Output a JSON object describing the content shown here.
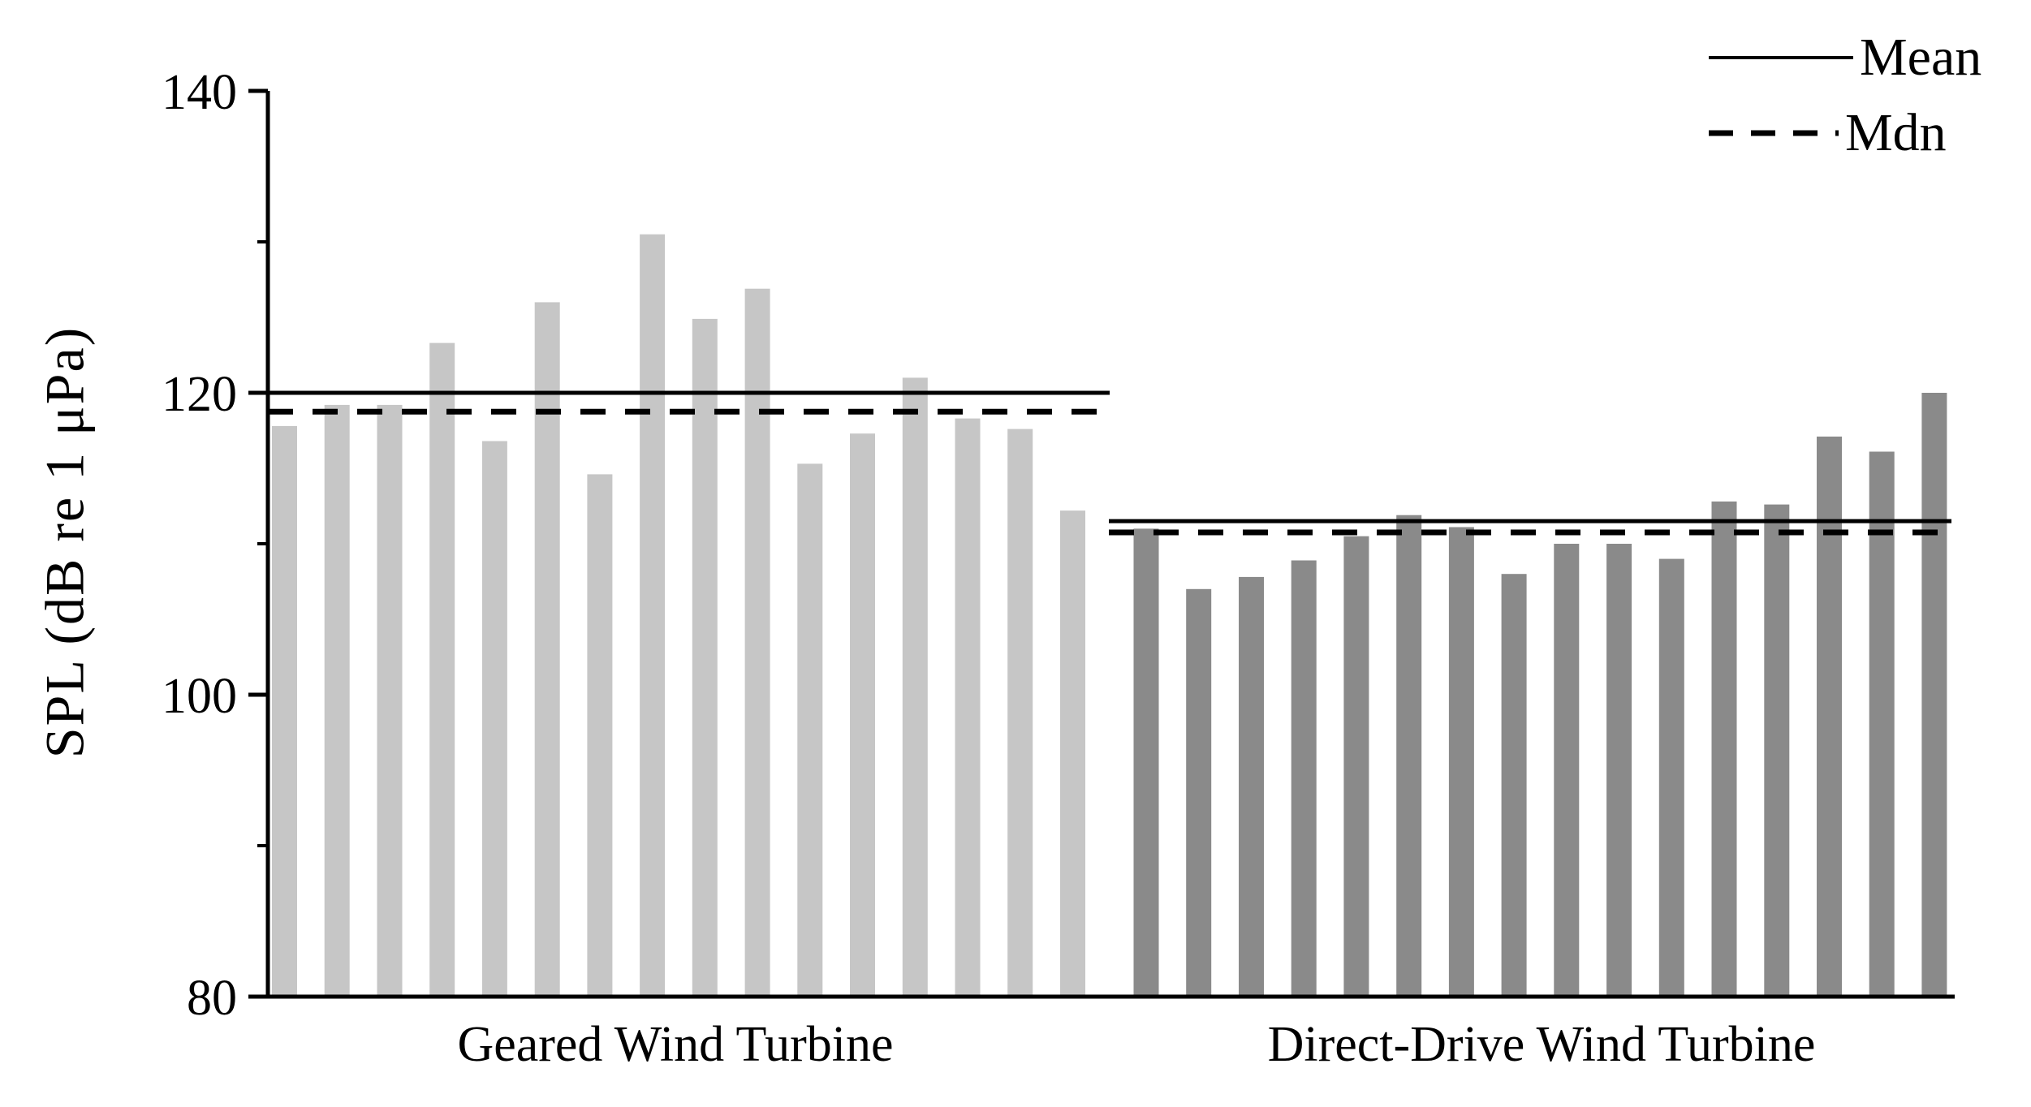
{
  "chart_data": {
    "type": "bar",
    "title": "",
    "ylabel": "SPL (dB re 1 μPa)",
    "xlabel": "",
    "ylim": [
      80,
      140
    ],
    "yticks": [
      140,
      120,
      100,
      80
    ],
    "yticks_minor": [
      130,
      110,
      90
    ],
    "grid": false,
    "legend_position": "top-right",
    "axis_color": "#000000",
    "legend": [
      {
        "label": "Mean",
        "style": "solid"
      },
      {
        "label": "Mdn",
        "style": "dashed"
      }
    ],
    "groups": [
      {
        "label": "Geared Wind Turbine",
        "bar_color": "#c6c6c6",
        "mean": 120.0,
        "median": 118.75,
        "values": [
          117.8,
          119.2,
          119.2,
          123.3,
          116.8,
          126.0,
          114.6,
          130.5,
          124.9,
          126.9,
          115.3,
          117.3,
          121.0,
          118.3,
          117.6,
          112.2
        ]
      },
      {
        "label": "Direct-Drive Wind Turbine",
        "bar_color": "#8a8a8a",
        "mean": 111.5,
        "median": 110.75,
        "values": [
          111.0,
          107.0,
          107.8,
          108.9,
          110.5,
          111.9,
          111.1,
          108.0,
          110.0,
          110.0,
          109.0,
          112.8,
          112.6,
          117.1,
          116.1,
          120.0
        ]
      }
    ]
  }
}
